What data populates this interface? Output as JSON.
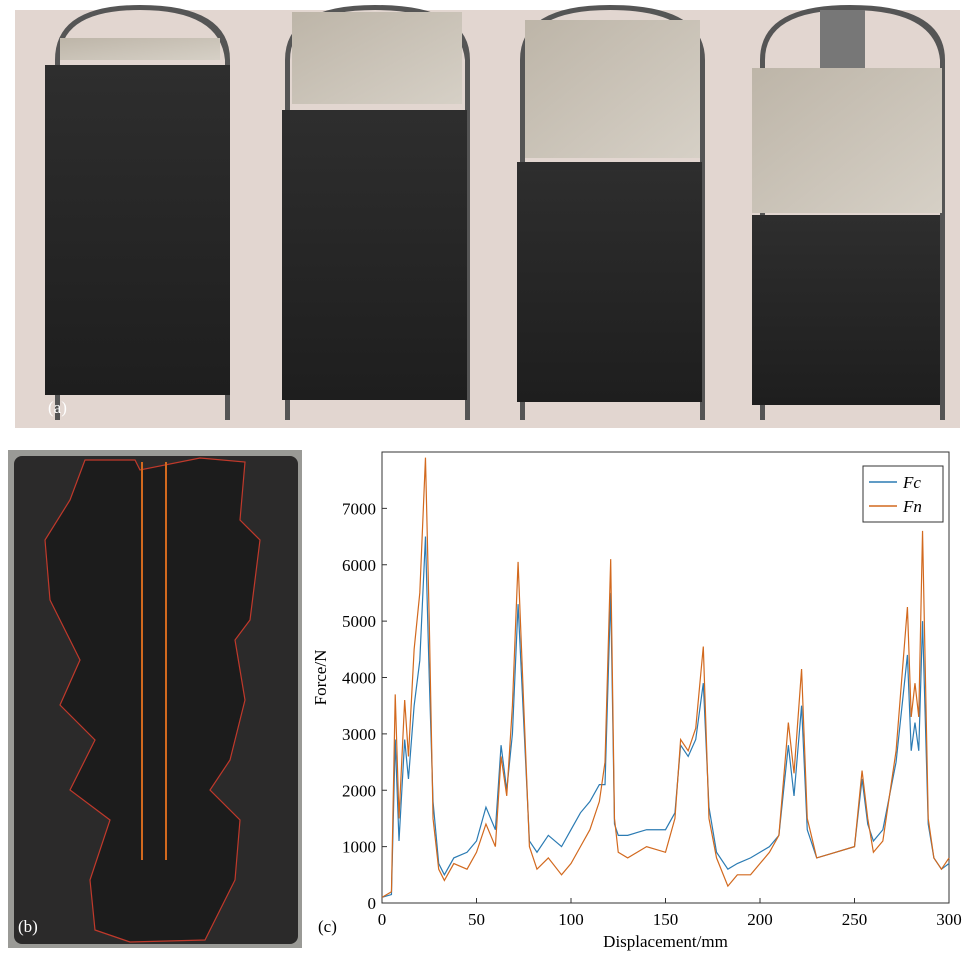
{
  "panels": {
    "a": "(a)",
    "b": "(b)",
    "c": "(c)"
  },
  "chart_data": {
    "type": "line",
    "xlabel": "Displacement/mm",
    "ylabel": "Force/N",
    "x": [
      0,
      5,
      7,
      9,
      12,
      14,
      17,
      20,
      23,
      25,
      27,
      30,
      33,
      38,
      45,
      50,
      55,
      60,
      63,
      66,
      69,
      72,
      75,
      78,
      82,
      88,
      95,
      100,
      105,
      110,
      115,
      118,
      121,
      123,
      125,
      130,
      140,
      150,
      155,
      158,
      162,
      166,
      170,
      173,
      177,
      183,
      188,
      195,
      200,
      205,
      210,
      215,
      218,
      222,
      225,
      230,
      240,
      250,
      254,
      257,
      260,
      265,
      272,
      278,
      280,
      282,
      284,
      286,
      289,
      292,
      296,
      300
    ],
    "series": [
      {
        "name": "Fc",
        "color": "#2b7bb3",
        "values": [
          100,
          150,
          2900,
          1100,
          2900,
          2200,
          3500,
          4300,
          6500,
          4000,
          1800,
          700,
          500,
          800,
          900,
          1100,
          1700,
          1300,
          2800,
          2000,
          3000,
          5300,
          3200,
          1100,
          900,
          1200,
          1000,
          1300,
          1600,
          1800,
          2100,
          2100,
          5500,
          1400,
          1200,
          1200,
          1300,
          1300,
          1600,
          2800,
          2600,
          2900,
          3900,
          1700,
          900,
          600,
          700,
          800,
          900,
          1000,
          1200,
          2800,
          1900,
          3500,
          1300,
          800,
          900,
          1000,
          2200,
          1400,
          1100,
          1300,
          2500,
          4400,
          2700,
          3200,
          2700,
          5000,
          1400,
          800,
          600,
          700
        ]
      },
      {
        "name": "Fn",
        "color": "#d2691e",
        "values": [
          100,
          200,
          3700,
          1500,
          3600,
          2600,
          4500,
          5500,
          7900,
          5000,
          1500,
          600,
          400,
          700,
          600,
          900,
          1400,
          1000,
          2600,
          1900,
          3500,
          6050,
          3500,
          1000,
          600,
          800,
          500,
          700,
          1000,
          1300,
          1800,
          2500,
          6100,
          1500,
          900,
          800,
          1000,
          900,
          1500,
          2900,
          2700,
          3100,
          4550,
          1500,
          800,
          300,
          500,
          500,
          700,
          900,
          1200,
          3200,
          2300,
          4150,
          1500,
          800,
          900,
          1000,
          2350,
          1500,
          900,
          1100,
          2700,
          5250,
          3300,
          3900,
          3300,
          6600,
          1500,
          800,
          600,
          800
        ]
      }
    ],
    "xlim": [
      0,
      300
    ],
    "xticks": [
      0,
      50,
      100,
      150,
      200,
      250,
      300
    ],
    "ylim": [
      0,
      8000
    ],
    "yticks": [
      0,
      1000,
      2000,
      3000,
      4000,
      5000,
      6000,
      7000
    ],
    "legend": "upper right"
  }
}
